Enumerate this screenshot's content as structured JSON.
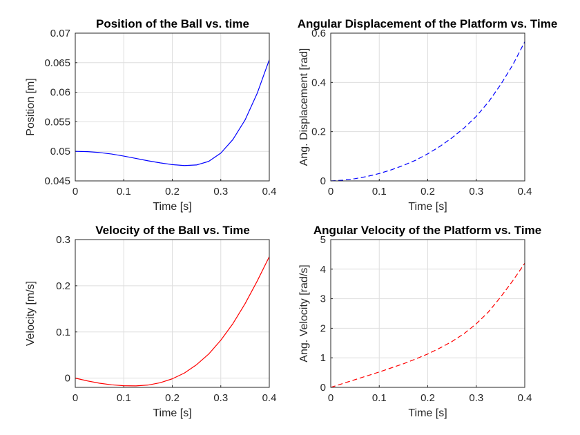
{
  "chart_data": [
    {
      "id": "pos",
      "type": "line",
      "title": "Position of the Ball vs. time",
      "xlabel": "Time [s]",
      "ylabel": "Position [m]",
      "xlim": [
        0,
        0.4
      ],
      "ylim": [
        0.045,
        0.07
      ],
      "xticks": [
        "0",
        "0.1",
        "0.2",
        "0.3",
        "0.4"
      ],
      "yticks": [
        "0.045",
        "0.05",
        "0.055",
        "0.06",
        "0.065",
        "0.07"
      ],
      "grid": true,
      "series": [
        {
          "color": "#0000ff",
          "dash": "solid",
          "x": [
            0,
            0.025,
            0.05,
            0.075,
            0.1,
            0.125,
            0.15,
            0.175,
            0.2,
            0.225,
            0.25,
            0.275,
            0.3,
            0.325,
            0.35,
            0.375,
            0.4
          ],
          "y": [
            0.05,
            0.04995,
            0.0498,
            0.04955,
            0.0492,
            0.0488,
            0.0484,
            0.04805,
            0.04775,
            0.0476,
            0.0477,
            0.0483,
            0.0497,
            0.052,
            0.0553,
            0.0598,
            0.0655
          ]
        }
      ]
    },
    {
      "id": "ang",
      "type": "line",
      "title": "Angular Displacement of the Platform vs. Time",
      "xlabel": "Time [s]",
      "ylabel": "Ang. Displacement [rad]",
      "xlim": [
        0,
        0.4
      ],
      "ylim": [
        0,
        0.6
      ],
      "xticks": [
        "0",
        "0.1",
        "0.2",
        "0.3",
        "0.4"
      ],
      "yticks": [
        "0",
        "0.2",
        "0.4",
        "0.6"
      ],
      "grid": true,
      "series": [
        {
          "color": "#0000ff",
          "dash": "dashed",
          "x": [
            0,
            0.025,
            0.05,
            0.075,
            0.1,
            0.125,
            0.15,
            0.175,
            0.2,
            0.225,
            0.25,
            0.275,
            0.3,
            0.325,
            0.35,
            0.375,
            0.4
          ],
          "y": [
            0,
            0.003,
            0.009,
            0.018,
            0.03,
            0.045,
            0.063,
            0.084,
            0.11,
            0.14,
            0.175,
            0.215,
            0.262,
            0.32,
            0.39,
            0.47,
            0.565
          ]
        }
      ]
    },
    {
      "id": "vel",
      "type": "line",
      "title": "Velocity of the Ball vs. Time",
      "xlabel": "Time [s]",
      "ylabel": "Velocity [m/s]",
      "xlim": [
        0,
        0.4
      ],
      "ylim": [
        -0.02,
        0.3
      ],
      "xticks": [
        "0",
        "0.1",
        "0.2",
        "0.3",
        "0.4"
      ],
      "yticks": [
        "0",
        "0.1",
        "0.2",
        "0.3"
      ],
      "ytick_values": [
        0,
        0.1,
        0.2,
        0.3
      ],
      "grid": true,
      "series": [
        {
          "color": "#ff0000",
          "dash": "solid",
          "x": [
            0,
            0.025,
            0.05,
            0.075,
            0.1,
            0.125,
            0.15,
            0.175,
            0.2,
            0.225,
            0.25,
            0.275,
            0.3,
            0.325,
            0.35,
            0.375,
            0.4
          ],
          "y": [
            0,
            -0.006,
            -0.011,
            -0.0145,
            -0.0165,
            -0.0168,
            -0.015,
            -0.01,
            -0.0015,
            0.011,
            0.029,
            0.052,
            0.082,
            0.118,
            0.161,
            0.21,
            0.263
          ]
        }
      ]
    },
    {
      "id": "angvel",
      "type": "line",
      "title": "Angular Velocity of the Platform vs. Time",
      "xlabel": "Time [s]",
      "ylabel": "Ang. Velocity [rad/s]",
      "xlim": [
        0,
        0.4
      ],
      "ylim": [
        0,
        5
      ],
      "xticks": [
        "0",
        "0.1",
        "0.2",
        "0.3",
        "0.4"
      ],
      "yticks": [
        "0",
        "1",
        "2",
        "3",
        "4",
        "5"
      ],
      "grid": true,
      "series": [
        {
          "color": "#ff0000",
          "dash": "dashed",
          "x": [
            0,
            0.025,
            0.05,
            0.075,
            0.1,
            0.125,
            0.15,
            0.175,
            0.2,
            0.225,
            0.25,
            0.275,
            0.3,
            0.325,
            0.35,
            0.375,
            0.4
          ],
          "y": [
            0,
            0.13,
            0.26,
            0.39,
            0.52,
            0.66,
            0.8,
            0.96,
            1.13,
            1.33,
            1.55,
            1.82,
            2.15,
            2.55,
            3.05,
            3.6,
            4.2
          ]
        }
      ]
    }
  ]
}
